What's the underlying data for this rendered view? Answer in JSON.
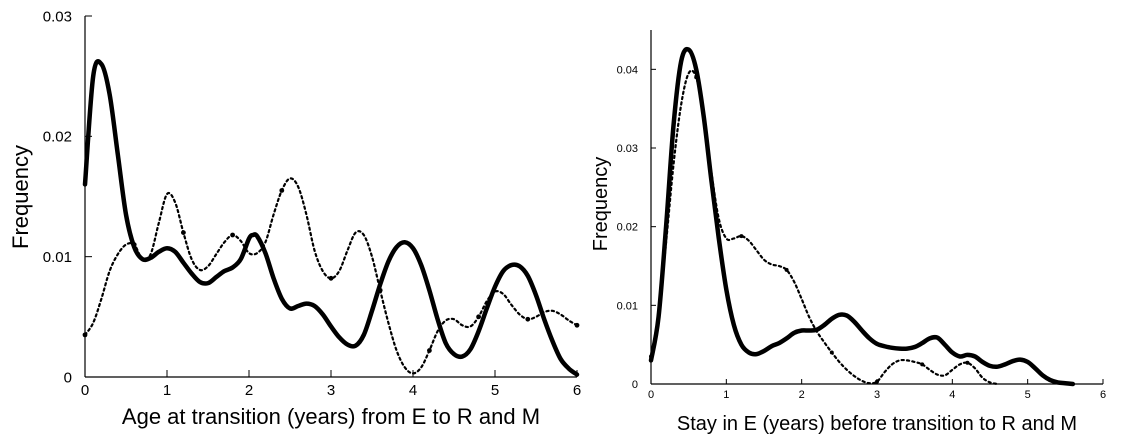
{
  "chart_data": [
    {
      "type": "line",
      "title": "",
      "xlabel": "Age at transition (years) from E to R and M",
      "ylabel": "Frequency",
      "xlim": [
        0,
        6
      ],
      "ylim": [
        0,
        0.03
      ],
      "xticks": [
        "0",
        "1",
        "2",
        "3",
        "4",
        "5",
        "6"
      ],
      "yticks": [
        "0",
        "0.01",
        "0.02",
        "0.03"
      ],
      "grid": false,
      "legend": "none",
      "series": [
        {
          "style": "solid-thick",
          "x": [
            0,
            0.1,
            0.2,
            0.3,
            0.4,
            0.5,
            0.6,
            0.7,
            0.8,
            0.9,
            1.0,
            1.1,
            1.2,
            1.3,
            1.4,
            1.5,
            1.6,
            1.7,
            1.8,
            1.9,
            2.0,
            2.05,
            2.1,
            2.2,
            2.3,
            2.4,
            2.5,
            2.6,
            2.7,
            2.8,
            2.9,
            3.0,
            3.1,
            3.2,
            3.3,
            3.4,
            3.5,
            3.6,
            3.7,
            3.8,
            3.9,
            4.0,
            4.1,
            4.2,
            4.3,
            4.4,
            4.5,
            4.6,
            4.7,
            4.8,
            4.9,
            5.0,
            5.1,
            5.2,
            5.3,
            5.4,
            5.5,
            5.6,
            5.7,
            5.8,
            5.9,
            6.0
          ],
          "y": [
            0.016,
            0.025,
            0.026,
            0.0235,
            0.0185,
            0.0135,
            0.0108,
            0.0098,
            0.0099,
            0.0104,
            0.0107,
            0.0104,
            0.0095,
            0.0086,
            0.0079,
            0.0078,
            0.0083,
            0.0088,
            0.0091,
            0.0098,
            0.0115,
            0.0118,
            0.0117,
            0.0103,
            0.0082,
            0.0065,
            0.0057,
            0.0059,
            0.0061,
            0.0059,
            0.0052,
            0.0042,
            0.0033,
            0.0027,
            0.0026,
            0.0035,
            0.0055,
            0.0077,
            0.0096,
            0.0108,
            0.0112,
            0.0107,
            0.0093,
            0.0072,
            0.0048,
            0.0028,
            0.0019,
            0.0017,
            0.0023,
            0.0038,
            0.0057,
            0.0075,
            0.0088,
            0.0093,
            0.0092,
            0.0084,
            0.0068,
            0.0048,
            0.003,
            0.0015,
            0.0007,
            0.0002
          ]
        },
        {
          "style": "dotted",
          "x": [
            0,
            0.1,
            0.2,
            0.3,
            0.4,
            0.5,
            0.6,
            0.7,
            0.8,
            0.9,
            1.0,
            1.1,
            1.2,
            1.3,
            1.4,
            1.5,
            1.6,
            1.7,
            1.8,
            1.9,
            2.0,
            2.1,
            2.2,
            2.3,
            2.4,
            2.5,
            2.6,
            2.7,
            2.8,
            2.9,
            3.0,
            3.1,
            3.2,
            3.3,
            3.4,
            3.5,
            3.6,
            3.7,
            3.8,
            3.9,
            4.0,
            4.1,
            4.2,
            4.3,
            4.4,
            4.5,
            4.6,
            4.7,
            4.8,
            4.9,
            5.0,
            5.1,
            5.2,
            5.3,
            5.4,
            5.5,
            5.6,
            5.7,
            5.8,
            5.9,
            6.0
          ],
          "y": [
            0.0035,
            0.0045,
            0.0065,
            0.0088,
            0.0102,
            0.011,
            0.011,
            0.0098,
            0.0102,
            0.0128,
            0.0152,
            0.0145,
            0.012,
            0.0098,
            0.0089,
            0.0092,
            0.0102,
            0.0112,
            0.0118,
            0.0113,
            0.0103,
            0.0103,
            0.0112,
            0.0135,
            0.0155,
            0.0165,
            0.0158,
            0.0135,
            0.0105,
            0.0088,
            0.0082,
            0.0088,
            0.0105,
            0.012,
            0.0118,
            0.01,
            0.0072,
            0.0045,
            0.0022,
            0.0008,
            0.0003,
            0.0008,
            0.0022,
            0.0038,
            0.0047,
            0.0048,
            0.0043,
            0.0042,
            0.005,
            0.0063,
            0.0071,
            0.0069,
            0.006,
            0.0052,
            0.0048,
            0.005,
            0.0054,
            0.0055,
            0.0052,
            0.0047,
            0.0043
          ]
        }
      ]
    },
    {
      "type": "line",
      "title": "",
      "xlabel": "Stay in E (years) before transition to R and M",
      "ylabel": "Frequency",
      "xlim": [
        0,
        6
      ],
      "ylim": [
        0,
        0.045
      ],
      "xticks": [
        "0",
        "1",
        "2",
        "3",
        "4",
        "5",
        "6"
      ],
      "yticks": [
        "0",
        "0.01",
        "0.02",
        "0.03",
        "0.04"
      ],
      "grid": false,
      "legend": "none",
      "series": [
        {
          "style": "solid-thick",
          "x": [
            0,
            0.1,
            0.2,
            0.3,
            0.4,
            0.5,
            0.6,
            0.7,
            0.8,
            0.9,
            1.0,
            1.1,
            1.2,
            1.3,
            1.4,
            1.5,
            1.6,
            1.7,
            1.8,
            1.9,
            2.0,
            2.1,
            2.2,
            2.3,
            2.4,
            2.5,
            2.6,
            2.7,
            2.8,
            2.9,
            3.0,
            3.1,
            3.2,
            3.3,
            3.4,
            3.5,
            3.6,
            3.7,
            3.8,
            3.9,
            4.0,
            4.1,
            4.2,
            4.3,
            4.4,
            4.5,
            4.6,
            4.7,
            4.8,
            4.9,
            5.0,
            5.1,
            5.2,
            5.3,
            5.4,
            5.5,
            5.6
          ],
          "y": [
            0.003,
            0.0085,
            0.02,
            0.033,
            0.041,
            0.0425,
            0.04,
            0.034,
            0.026,
            0.0185,
            0.012,
            0.0075,
            0.005,
            0.004,
            0.0038,
            0.0042,
            0.0048,
            0.0052,
            0.0058,
            0.0065,
            0.0068,
            0.0068,
            0.0069,
            0.0075,
            0.0083,
            0.0088,
            0.0087,
            0.0079,
            0.0068,
            0.0058,
            0.0051,
            0.0048,
            0.0046,
            0.0045,
            0.0045,
            0.0047,
            0.0052,
            0.0058,
            0.0059,
            0.005,
            0.004,
            0.0035,
            0.0037,
            0.0035,
            0.0028,
            0.0023,
            0.0022,
            0.0025,
            0.0029,
            0.0031,
            0.0028,
            0.002,
            0.0011,
            0.0005,
            0.0002,
            0.0001,
            0
          ]
        },
        {
          "style": "dotted",
          "x": [
            0,
            0.1,
            0.2,
            0.3,
            0.4,
            0.5,
            0.6,
            0.7,
            0.8,
            0.9,
            1.0,
            1.1,
            1.2,
            1.3,
            1.4,
            1.5,
            1.6,
            1.7,
            1.8,
            1.9,
            2.0,
            2.1,
            2.2,
            2.3,
            2.4,
            2.5,
            2.6,
            2.7,
            2.8,
            2.9,
            3.0,
            3.1,
            3.2,
            3.3,
            3.4,
            3.5,
            3.6,
            3.7,
            3.8,
            3.9,
            4.0,
            4.1,
            4.2,
            4.3,
            4.4,
            4.5,
            4.6
          ],
          "y": [
            0.0035,
            0.009,
            0.018,
            0.028,
            0.0355,
            0.0395,
            0.039,
            0.034,
            0.027,
            0.021,
            0.0185,
            0.0185,
            0.0188,
            0.0182,
            0.017,
            0.0158,
            0.0152,
            0.015,
            0.0145,
            0.013,
            0.0108,
            0.0085,
            0.0067,
            0.0053,
            0.004,
            0.0028,
            0.0018,
            0.001,
            0.0004,
            0.0001,
            0.0003,
            0.0015,
            0.0025,
            0.003,
            0.003,
            0.0028,
            0.0025,
            0.0018,
            0.0012,
            0.0011,
            0.0018,
            0.0025,
            0.0027,
            0.002,
            0.0008,
            0.0002,
            0
          ]
        }
      ]
    }
  ]
}
